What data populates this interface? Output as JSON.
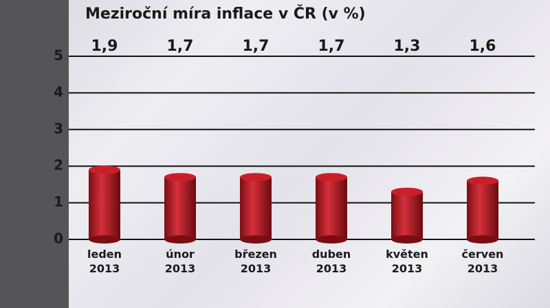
{
  "chart_data": {
    "type": "bar",
    "title": "Meziroční míra inflace v ČR (v %)",
    "categories": [
      "leden 2013",
      "únor 2013",
      "březen 2013",
      "duben 2013",
      "květen 2013",
      "červen 2013"
    ],
    "values": [
      1.9,
      1.7,
      1.7,
      1.7,
      1.3,
      1.6
    ],
    "value_labels": [
      "1,9",
      "1,7",
      "1,7",
      "1,7",
      "1,3",
      "1,6"
    ],
    "color": "#c8202a",
    "ylim": [
      0,
      5
    ],
    "yticks": [
      0,
      1,
      2,
      3,
      4,
      5
    ],
    "grid": true
  }
}
